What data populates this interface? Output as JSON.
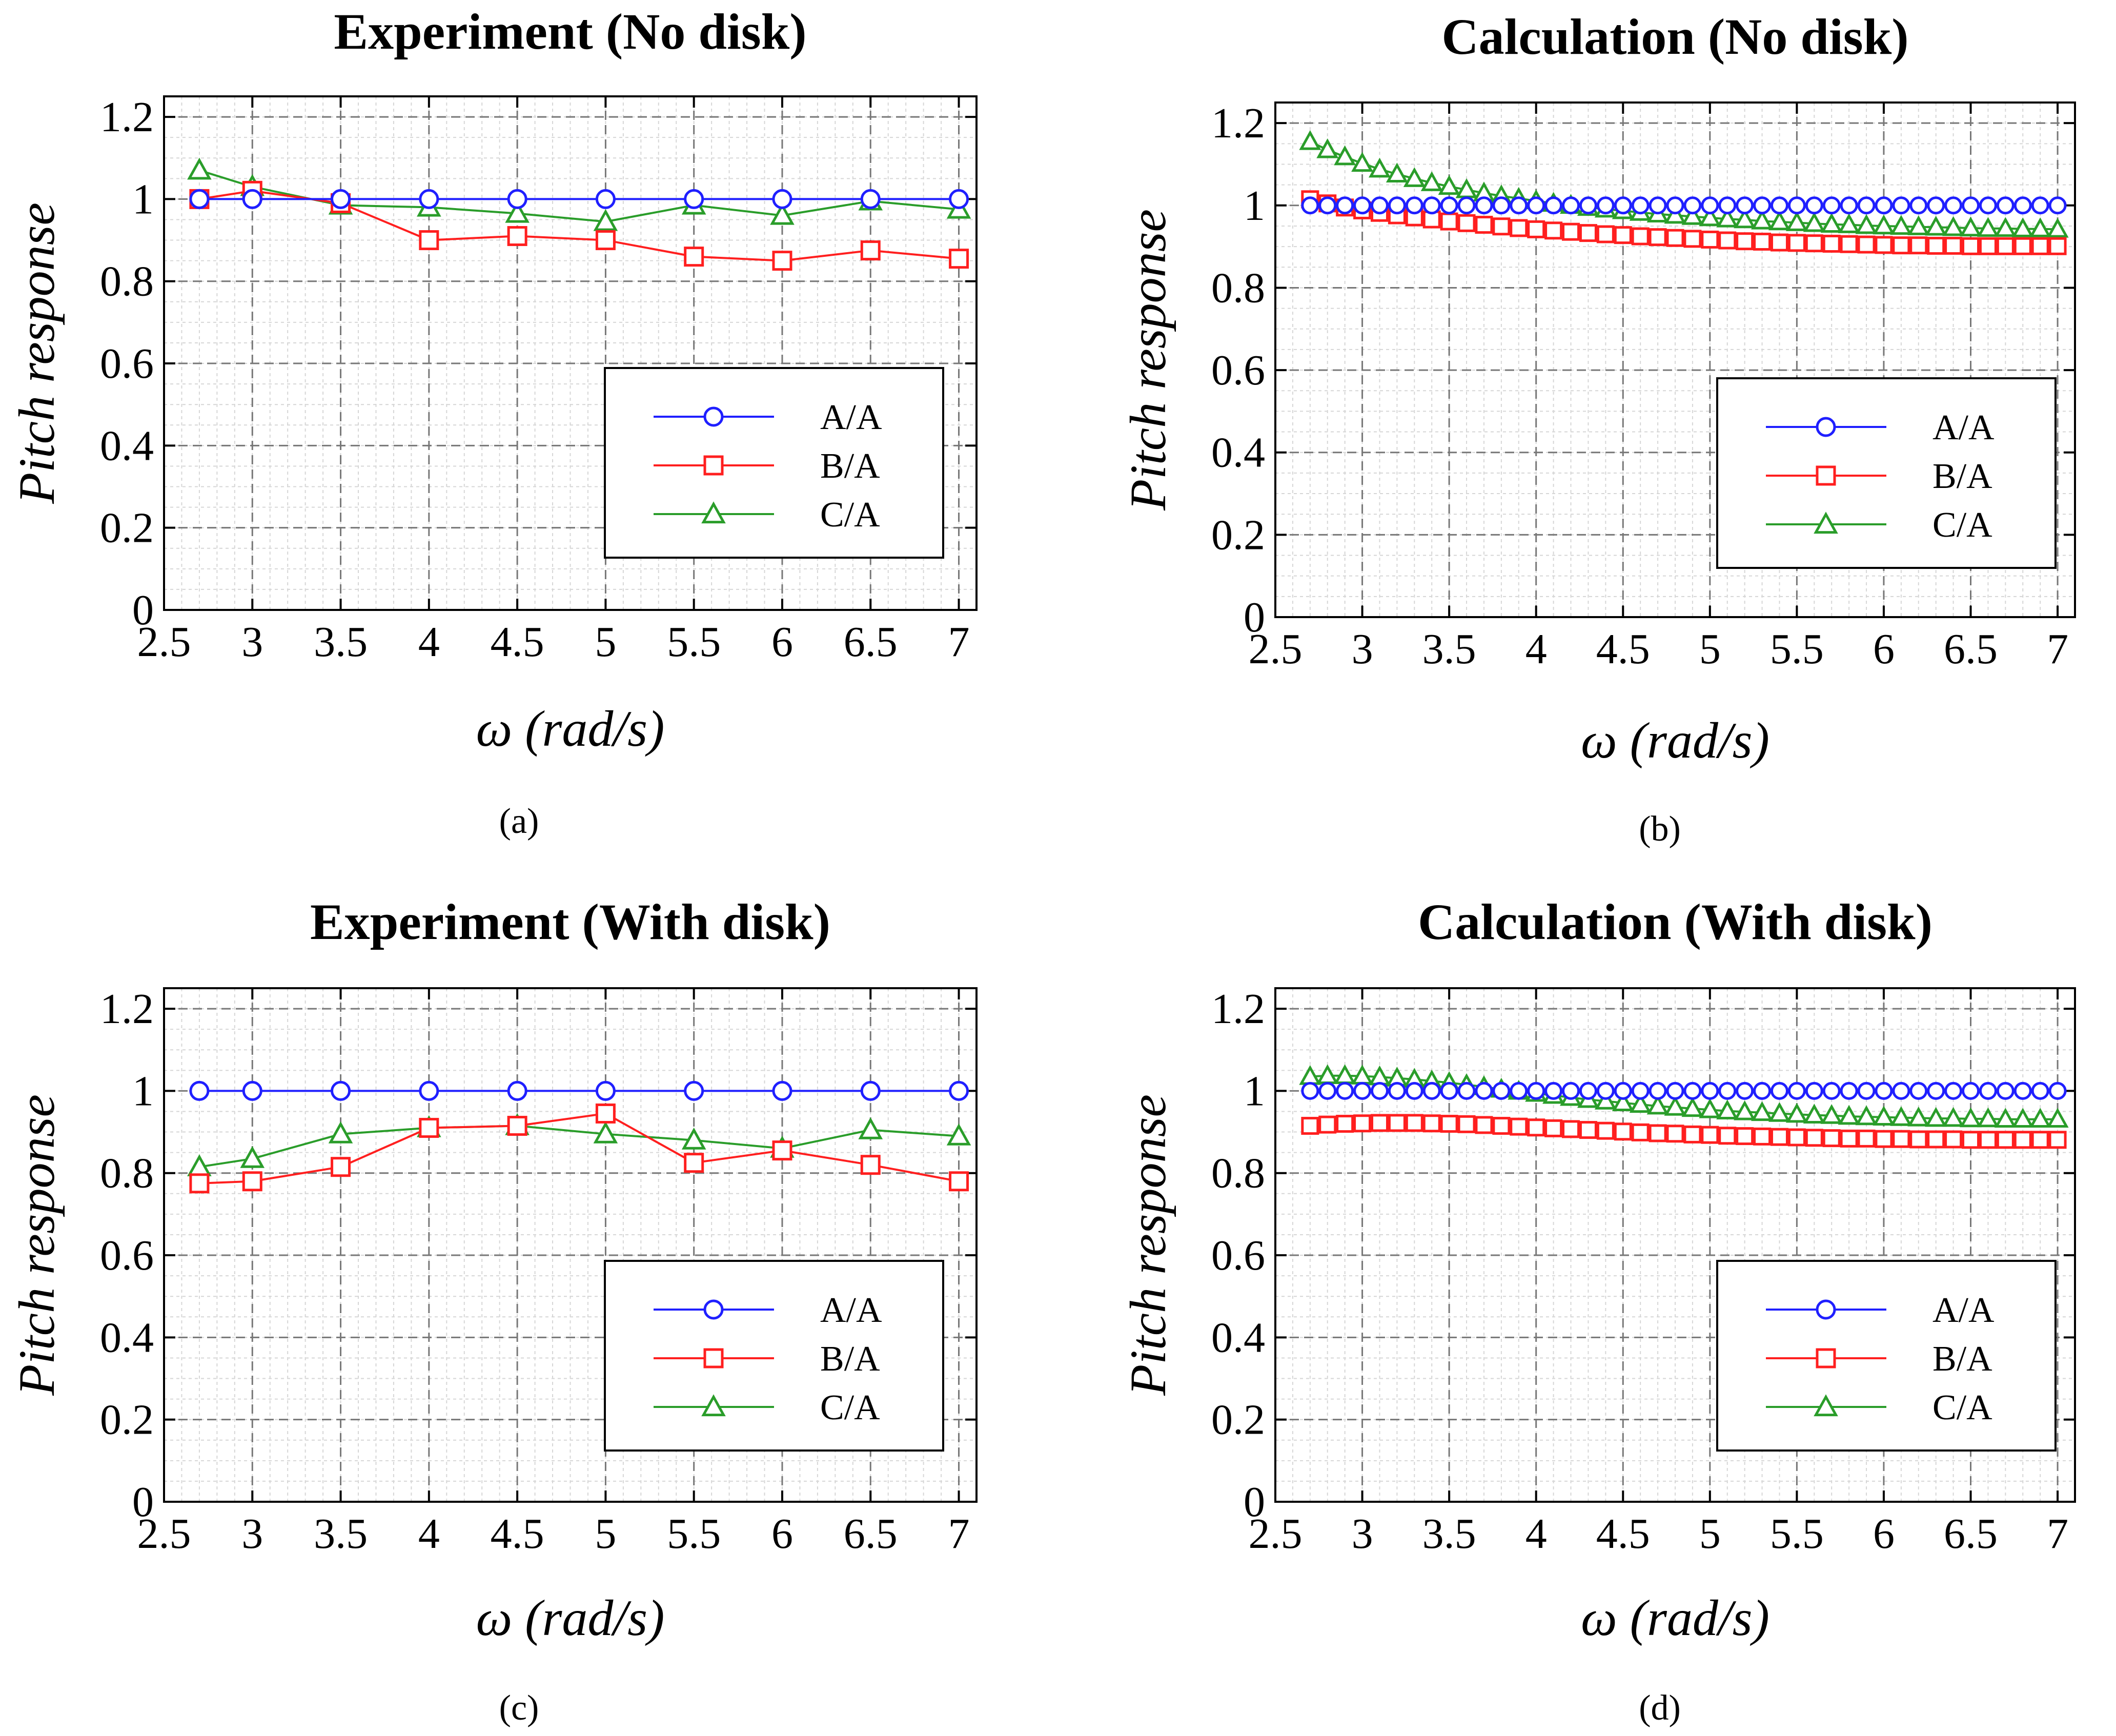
{
  "figure": {
    "legend_labels": [
      "A/A",
      "B/A",
      "C/A"
    ],
    "series_colors": {
      "A/A": "#1f1fff",
      "B/A": "#ff1f1f",
      "C/A": "#2a9d2a"
    },
    "marker_shapes": {
      "A/A": "circle",
      "B/A": "square",
      "C/A": "triangle"
    }
  },
  "chart_data": [
    {
      "id": "a",
      "type": "line",
      "title": "Experiment (No disk)",
      "xlabel": "ω (rad/s)",
      "ylabel": "Pitch response",
      "caption": "(a)",
      "xlim": [
        2.5,
        7.1
      ],
      "ylim": [
        0,
        1.25
      ],
      "xticks": [
        "2.5",
        "3",
        "3.5",
        "4",
        "4.5",
        "5",
        "5.5",
        "6",
        "6.5",
        "7"
      ],
      "yticks": [
        "0",
        "0.2",
        "0.4",
        "0.6",
        "0.8",
        "1",
        "1.2"
      ],
      "grid": true,
      "legend": "lower-right",
      "series": [
        {
          "name": "A/A",
          "x": [
            2.7,
            3,
            3.5,
            4,
            4.5,
            5,
            5.5,
            6,
            6.5,
            7
          ],
          "values": [
            1,
            1,
            1,
            1,
            1,
            1,
            1,
            1,
            1,
            1
          ]
        },
        {
          "name": "B/A",
          "x": [
            2.7,
            3,
            3.5,
            4,
            4.5,
            5,
            5.5,
            6,
            6.5,
            7
          ],
          "values": [
            1.0,
            1.02,
            0.99,
            0.9,
            0.91,
            0.9,
            0.86,
            0.85,
            0.875,
            0.855
          ]
        },
        {
          "name": "C/A",
          "x": [
            2.7,
            3,
            3.5,
            4,
            4.5,
            5,
            5.5,
            6,
            6.5,
            7
          ],
          "values": [
            1.07,
            1.03,
            0.985,
            0.98,
            0.965,
            0.945,
            0.985,
            0.96,
            0.995,
            0.975
          ]
        }
      ]
    },
    {
      "id": "b",
      "type": "line",
      "title": "Calculation (No disk)",
      "xlabel": "ω (rad/s)",
      "ylabel": "Pitch response",
      "caption": "(b)",
      "xlim": [
        2.5,
        7.1
      ],
      "ylim": [
        0,
        1.25
      ],
      "xticks": [
        "2.5",
        "3",
        "3.5",
        "4",
        "4.5",
        "5",
        "5.5",
        "6",
        "6.5",
        "7"
      ],
      "yticks": [
        "0",
        "0.2",
        "0.4",
        "0.6",
        "0.8",
        "1",
        "1.2"
      ],
      "grid": true,
      "legend": "lower-right",
      "series": [
        {
          "name": "A/A",
          "x": [
            2.7,
            2.8,
            2.9,
            3.0,
            3.1,
            3.2,
            3.3,
            3.4,
            3.5,
            3.6,
            3.7,
            3.8,
            3.9,
            4.0,
            4.1,
            4.2,
            4.3,
            4.4,
            4.5,
            4.6,
            4.7,
            4.8,
            4.9,
            5.0,
            5.1,
            5.2,
            5.3,
            5.4,
            5.5,
            5.6,
            5.7,
            5.8,
            5.9,
            6.0,
            6.1,
            6.2,
            6.3,
            6.4,
            6.5,
            6.6,
            6.7,
            6.8,
            6.9,
            7.0
          ],
          "values": [
            1,
            1,
            1,
            1,
            1,
            1,
            1,
            1,
            1,
            1,
            1,
            1,
            1,
            1,
            1,
            1,
            1,
            1,
            1,
            1,
            1,
            1,
            1,
            1,
            1,
            1,
            1,
            1,
            1,
            1,
            1,
            1,
            1,
            1,
            1,
            1,
            1,
            1,
            1,
            1,
            1,
            1,
            1,
            1
          ]
        },
        {
          "name": "B/A",
          "x": [
            2.7,
            2.8,
            2.9,
            3.0,
            3.1,
            3.2,
            3.3,
            3.4,
            3.5,
            3.6,
            3.7,
            3.8,
            3.9,
            4.0,
            4.1,
            4.2,
            4.3,
            4.4,
            4.5,
            4.6,
            4.7,
            4.8,
            4.9,
            5.0,
            5.1,
            5.2,
            5.3,
            5.4,
            5.5,
            5.6,
            5.7,
            5.8,
            5.9,
            6.0,
            6.1,
            6.2,
            6.3,
            6.4,
            6.5,
            6.6,
            6.7,
            6.8,
            6.9,
            7.0
          ],
          "values": [
            1.015,
            1.005,
            0.995,
            0.988,
            0.982,
            0.976,
            0.971,
            0.966,
            0.961,
            0.957,
            0.953,
            0.949,
            0.945,
            0.942,
            0.939,
            0.936,
            0.933,
            0.93,
            0.928,
            0.925,
            0.923,
            0.921,
            0.919,
            0.917,
            0.915,
            0.913,
            0.912,
            0.91,
            0.909,
            0.908,
            0.907,
            0.906,
            0.905,
            0.904,
            0.903,
            0.903,
            0.902,
            0.902,
            0.901,
            0.901,
            0.901,
            0.901,
            0.901,
            0.901
          ]
        },
        {
          "name": "C/A",
          "x": [
            2.7,
            2.8,
            2.9,
            3.0,
            3.1,
            3.2,
            3.3,
            3.4,
            3.5,
            3.6,
            3.7,
            3.8,
            3.9,
            4.0,
            4.1,
            4.2,
            4.3,
            4.4,
            4.5,
            4.6,
            4.7,
            4.8,
            4.9,
            5.0,
            5.1,
            5.2,
            5.3,
            5.4,
            5.5,
            5.6,
            5.7,
            5.8,
            5.9,
            6.0,
            6.1,
            6.2,
            6.3,
            6.4,
            6.5,
            6.6,
            6.7,
            6.8,
            6.9,
            7.0
          ],
          "values": [
            1.155,
            1.135,
            1.118,
            1.102,
            1.088,
            1.076,
            1.065,
            1.055,
            1.046,
            1.038,
            1.03,
            1.023,
            1.017,
            1.011,
            1.005,
            1.0,
            0.995,
            0.991,
            0.987,
            0.983,
            0.979,
            0.976,
            0.973,
            0.97,
            0.967,
            0.965,
            0.962,
            0.96,
            0.958,
            0.956,
            0.954,
            0.953,
            0.951,
            0.95,
            0.949,
            0.948,
            0.947,
            0.946,
            0.945,
            0.944,
            0.944,
            0.943,
            0.943,
            0.942
          ]
        }
      ]
    },
    {
      "id": "c",
      "type": "line",
      "title": "Experiment (With disk)",
      "xlabel": "ω (rad/s)",
      "ylabel": "Pitch response",
      "caption": "(c)",
      "xlim": [
        2.5,
        7.1
      ],
      "ylim": [
        0,
        1.25
      ],
      "xticks": [
        "2.5",
        "3",
        "3.5",
        "4",
        "4.5",
        "5",
        "5.5",
        "6",
        "6.5",
        "7"
      ],
      "yticks": [
        "0",
        "0.2",
        "0.4",
        "0.6",
        "0.8",
        "1",
        "1.2"
      ],
      "grid": true,
      "legend": "lower-right",
      "series": [
        {
          "name": "A/A",
          "x": [
            2.7,
            3,
            3.5,
            4,
            4.5,
            5,
            5.5,
            6,
            6.5,
            7
          ],
          "values": [
            1,
            1,
            1,
            1,
            1,
            1,
            1,
            1,
            1,
            1
          ]
        },
        {
          "name": "B/A",
          "x": [
            2.7,
            3,
            3.5,
            4,
            4.5,
            5,
            5.5,
            6,
            6.5,
            7
          ],
          "values": [
            0.775,
            0.78,
            0.815,
            0.91,
            0.915,
            0.945,
            0.825,
            0.855,
            0.82,
            0.78
          ]
        },
        {
          "name": "C/A",
          "x": [
            2.7,
            3,
            3.5,
            4,
            4.5,
            5,
            5.5,
            6,
            6.5,
            7
          ],
          "values": [
            0.815,
            0.835,
            0.895,
            0.91,
            0.915,
            0.895,
            0.88,
            0.86,
            0.905,
            0.89
          ]
        }
      ]
    },
    {
      "id": "d",
      "type": "line",
      "title": "Calculation (With disk)",
      "xlabel": "ω (rad/s)",
      "ylabel": "Pitch response",
      "caption": "(d)",
      "xlim": [
        2.5,
        7.1
      ],
      "ylim": [
        0,
        1.25
      ],
      "xticks": [
        "2.5",
        "3",
        "3.5",
        "4",
        "4.5",
        "5",
        "5.5",
        "6",
        "6.5",
        "7"
      ],
      "yticks": [
        "0",
        "0.2",
        "0.4",
        "0.6",
        "0.8",
        "1",
        "1.2"
      ],
      "grid": true,
      "legend": "lower-right",
      "series": [
        {
          "name": "A/A",
          "x": [
            2.7,
            2.8,
            2.9,
            3.0,
            3.1,
            3.2,
            3.3,
            3.4,
            3.5,
            3.6,
            3.7,
            3.8,
            3.9,
            4.0,
            4.1,
            4.2,
            4.3,
            4.4,
            4.5,
            4.6,
            4.7,
            4.8,
            4.9,
            5.0,
            5.1,
            5.2,
            5.3,
            5.4,
            5.5,
            5.6,
            5.7,
            5.8,
            5.9,
            6.0,
            6.1,
            6.2,
            6.3,
            6.4,
            6.5,
            6.6,
            6.7,
            6.8,
            6.9,
            7.0
          ],
          "values": [
            1,
            1,
            1,
            1,
            1,
            1,
            1,
            1,
            1,
            1,
            1,
            1,
            1,
            1,
            1,
            1,
            1,
            1,
            1,
            1,
            1,
            1,
            1,
            1,
            1,
            1,
            1,
            1,
            1,
            1,
            1,
            1,
            1,
            1,
            1,
            1,
            1,
            1,
            1,
            1,
            1,
            1,
            1,
            1
          ]
        },
        {
          "name": "B/A",
          "x": [
            2.7,
            2.8,
            2.9,
            3.0,
            3.1,
            3.2,
            3.3,
            3.4,
            3.5,
            3.6,
            3.7,
            3.8,
            3.9,
            4.0,
            4.1,
            4.2,
            4.3,
            4.4,
            4.5,
            4.6,
            4.7,
            4.8,
            4.9,
            5.0,
            5.1,
            5.2,
            5.3,
            5.4,
            5.5,
            5.6,
            5.7,
            5.8,
            5.9,
            6.0,
            6.1,
            6.2,
            6.3,
            6.4,
            6.5,
            6.6,
            6.7,
            6.8,
            6.9,
            7.0
          ],
          "values": [
            0.915,
            0.918,
            0.92,
            0.921,
            0.922,
            0.922,
            0.922,
            0.921,
            0.92,
            0.919,
            0.917,
            0.915,
            0.913,
            0.911,
            0.909,
            0.907,
            0.905,
            0.903,
            0.901,
            0.899,
            0.897,
            0.896,
            0.894,
            0.893,
            0.891,
            0.89,
            0.889,
            0.888,
            0.887,
            0.886,
            0.885,
            0.884,
            0.884,
            0.883,
            0.883,
            0.882,
            0.882,
            0.882,
            0.881,
            0.881,
            0.881,
            0.881,
            0.881,
            0.881
          ]
        },
        {
          "name": "C/A",
          "x": [
            2.7,
            2.8,
            2.9,
            3.0,
            3.1,
            3.2,
            3.3,
            3.4,
            3.5,
            3.6,
            3.7,
            3.8,
            3.9,
            4.0,
            4.1,
            4.2,
            4.3,
            4.4,
            4.5,
            4.6,
            4.7,
            4.8,
            4.9,
            5.0,
            5.1,
            5.2,
            5.3,
            5.4,
            5.5,
            5.6,
            5.7,
            5.8,
            5.9,
            6.0,
            6.1,
            6.2,
            6.3,
            6.4,
            6.5,
            6.6,
            6.7,
            6.8,
            6.9,
            7.0
          ],
          "values": [
            1.035,
            1.037,
            1.037,
            1.036,
            1.034,
            1.031,
            1.028,
            1.024,
            1.02,
            1.015,
            1.01,
            1.004,
            0.999,
            0.994,
            0.989,
            0.984,
            0.979,
            0.975,
            0.971,
            0.967,
            0.963,
            0.96,
            0.957,
            0.954,
            0.951,
            0.949,
            0.947,
            0.945,
            0.943,
            0.941,
            0.94,
            0.938,
            0.937,
            0.936,
            0.935,
            0.934,
            0.933,
            0.933,
            0.932,
            0.932,
            0.931,
            0.931,
            0.931,
            0.931
          ]
        }
      ]
    }
  ]
}
